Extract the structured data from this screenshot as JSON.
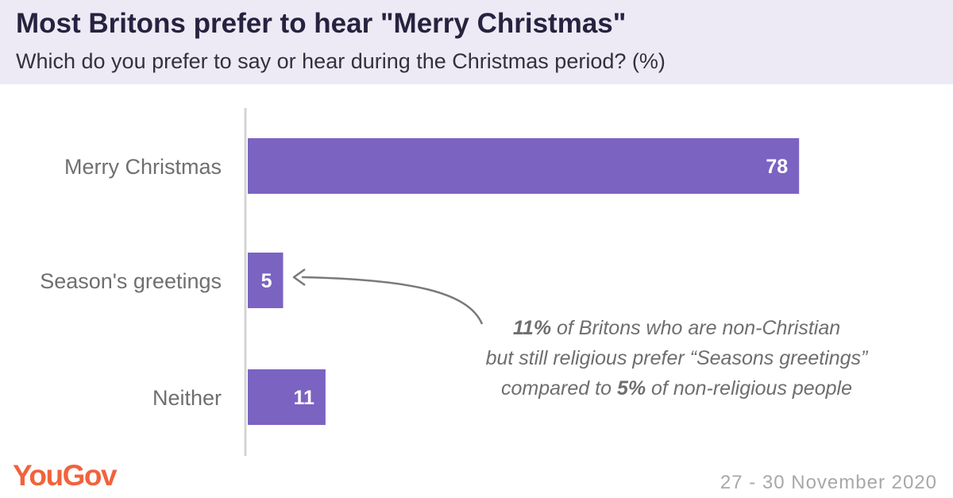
{
  "header": {
    "title": "Most Britons prefer to hear \"Merry Christmas\"",
    "subtitle": "Which do you prefer to say or hear during the Christmas period? (%)"
  },
  "chart_data": {
    "type": "bar",
    "orientation": "horizontal",
    "categories": [
      "Merry Christmas",
      "Season's greetings",
      "Neither"
    ],
    "values": [
      78,
      5,
      11
    ],
    "value_labels": [
      "78",
      "5",
      "11"
    ],
    "title": "Most Britons prefer to hear \"Merry Christmas\"",
    "xlabel": "",
    "ylabel": "",
    "xlim": [
      0,
      100
    ],
    "grid": false,
    "bar_color": "#7b63c2"
  },
  "annotation": {
    "line1_bold": "11%",
    "line1_rest": " of Britons who are non-Christian",
    "line2": "but still religious prefer “Seasons greetings”",
    "line3_pre": "compared to ",
    "line3_bold": "5%",
    "line3_rest": " of non-religious people"
  },
  "footer": {
    "brand": "YouGov",
    "date": "27 - 30 November 2020"
  },
  "colors": {
    "header_bg": "#edeaf5",
    "title": "#26223f",
    "bar": "#7b63c2",
    "axis": "#d4d4d4",
    "brand": "#f0633d",
    "annotation_text": "#6e6e6e",
    "arrow": "#7a7a7a"
  }
}
